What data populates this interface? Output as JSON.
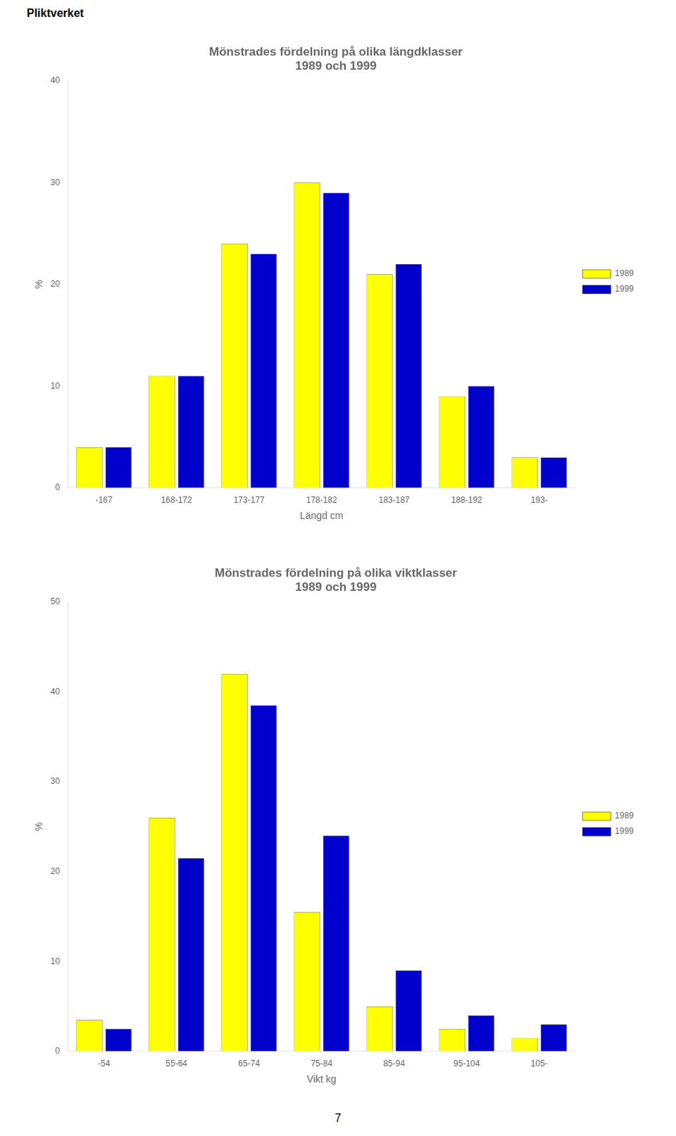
{
  "header": "Pliktverket",
  "page_number": "7",
  "chart_data": [
    {
      "type": "bar",
      "title": "Mönstrades fördelning på olika längdklasser",
      "subtitle": "1989 och 1999",
      "x_label": "Längd cm",
      "y_label": "%",
      "categories": [
        "-167",
        "168-172",
        "173-177",
        "178-182",
        "183-187",
        "188-192",
        "193-"
      ],
      "series": [
        {
          "name": "1989",
          "color": "#ffff00",
          "values": [
            4,
            11,
            24,
            30,
            21,
            9,
            3
          ]
        },
        {
          "name": "1999",
          "color": "#0000cc",
          "values": [
            4,
            11,
            23,
            29,
            22,
            10,
            3
          ]
        }
      ],
      "ylim": [
        0,
        40
      ],
      "yticks": [
        0,
        10,
        20,
        30,
        40
      ],
      "grid": false,
      "legend": "right"
    },
    {
      "type": "bar",
      "title": "Mönstrades fördelning på olika viktklasser",
      "subtitle": "1989 och 1999",
      "x_label": "Vikt kg",
      "y_label": "%",
      "categories": [
        "-54",
        "55-64",
        "65-74",
        "75-84",
        "85-94",
        "95-104",
        "105-"
      ],
      "series": [
        {
          "name": "1989",
          "color": "#ffff00",
          "values": [
            3.5,
            26,
            42,
            15.5,
            5,
            2.5,
            1.5
          ]
        },
        {
          "name": "1999",
          "color": "#0000cc",
          "values": [
            2.5,
            21.5,
            38.5,
            24,
            9,
            4,
            3
          ]
        }
      ],
      "ylim": [
        0,
        50
      ],
      "yticks": [
        0,
        10,
        20,
        30,
        40,
        50
      ],
      "grid": false,
      "legend": "right"
    }
  ]
}
